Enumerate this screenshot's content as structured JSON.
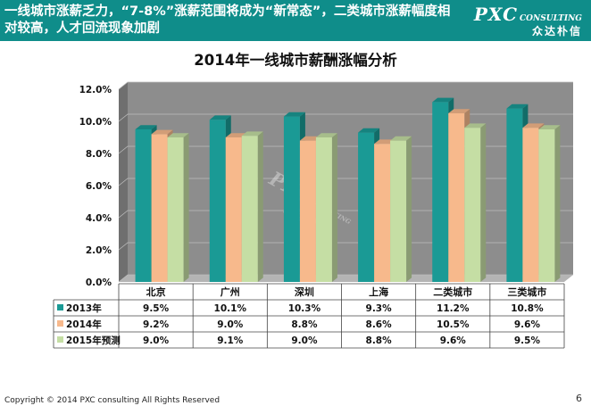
{
  "header": {
    "text": "一线城市涨薪乏力，“7-8%”涨薪范围将成为“新常态”，二类城市涨薪幅度相对较高，人才回流现象加剧",
    "brand_main": "PXC",
    "brand_sub": "CONSULTING",
    "brand_cn": "众达朴信"
  },
  "footer": {
    "copyright": "Copyright © 2014 PXC consulting All Rights Reserved",
    "page": "6"
  },
  "watermark": {
    "main": "PXC",
    "sub": "CONSULTING",
    "cn": "众达朴信"
  },
  "chart_data": {
    "type": "bar",
    "title": "2014年一线城市薪酬涨幅分析",
    "categories": [
      "北京",
      "广州",
      "深圳",
      "上海",
      "二类城市",
      "三类城市"
    ],
    "series": [
      {
        "name": "2013年",
        "color": "#1a9a95",
        "values": [
          9.5,
          10.1,
          10.3,
          9.3,
          11.2,
          10.8
        ]
      },
      {
        "name": "2014年",
        "color": "#f7b98c",
        "values": [
          9.2,
          9.0,
          8.8,
          8.6,
          10.5,
          9.6
        ]
      },
      {
        "name": "2015年预测",
        "color": "#c5dea4",
        "values": [
          9.0,
          9.1,
          9.0,
          8.8,
          9.6,
          9.5
        ]
      }
    ],
    "ylim": [
      0,
      12
    ],
    "yticks": [
      "0.0%",
      "2.0%",
      "4.0%",
      "6.0%",
      "8.0%",
      "10.0%",
      "12.0%"
    ],
    "grid": true,
    "data_table": true,
    "wall_color": "#8d8d8d"
  }
}
